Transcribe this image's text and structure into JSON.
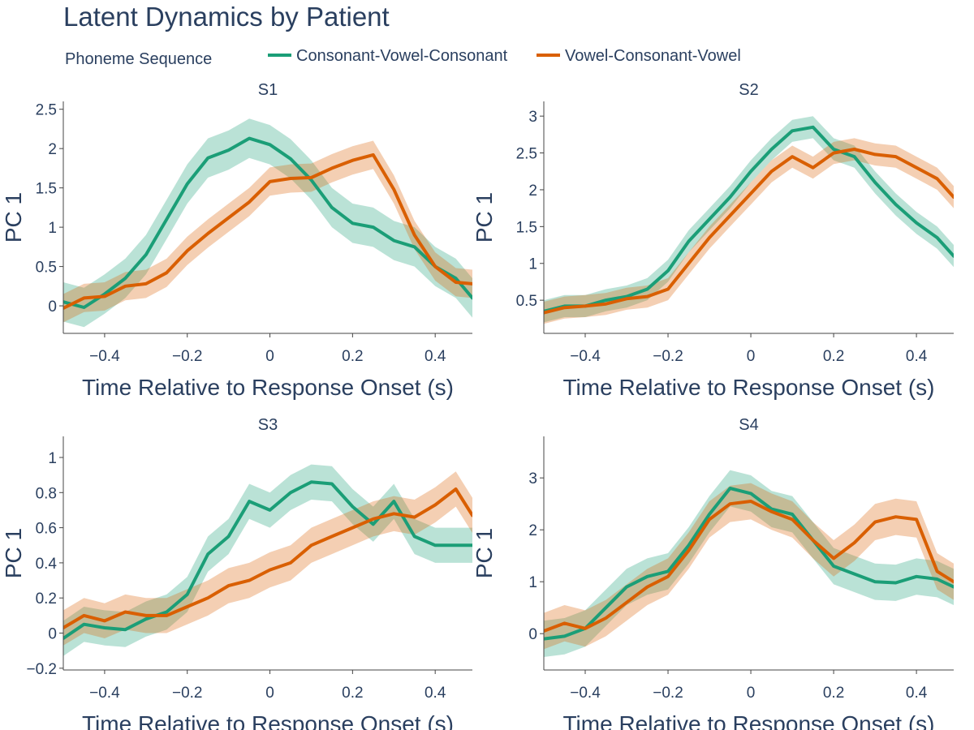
{
  "chart_title": "Latent Dynamics by Patient",
  "legend": {
    "title": "Phoneme Sequence",
    "items": [
      {
        "label": "Consonant-Vowel-Consonant",
        "color": "#1b9e77"
      },
      {
        "label": "Vowel-Consonant-Vowel",
        "color": "#d95f02"
      }
    ]
  },
  "colors": {
    "cvc": "#1b9e77",
    "vcv": "#d95f02",
    "text": "#2a3f5f",
    "axis": "#444444"
  },
  "chart_data": [
    {
      "type": "line",
      "title": "S1",
      "xlabel": "Time Relative to Response Onset (s)",
      "ylabel": "PC 1",
      "xlim": [
        -0.5,
        0.49
      ],
      "ylim": [
        -0.35,
        2.6
      ],
      "x_ticks": [
        -0.4,
        -0.2,
        0,
        0.2,
        0.4
      ],
      "x_tick_labels": [
        "−0.4",
        "−0.2",
        "0",
        "0.2",
        "0.4"
      ],
      "y_ticks": [
        0,
        0.5,
        1,
        1.5,
        2,
        2.5
      ],
      "y_tick_labels": [
        "0",
        "0.5",
        "1",
        "1.5",
        "2",
        "2.5"
      ],
      "x": [
        -0.5,
        -0.45,
        -0.4,
        -0.35,
        -0.3,
        -0.25,
        -0.2,
        -0.15,
        -0.1,
        -0.05,
        0,
        0.05,
        0.1,
        0.15,
        0.2,
        0.25,
        0.3,
        0.35,
        0.4,
        0.45,
        0.49
      ],
      "series": [
        {
          "name": "Consonant-Vowel-Consonant",
          "y": [
            0.05,
            -0.02,
            0.15,
            0.35,
            0.65,
            1.1,
            1.55,
            1.88,
            1.98,
            2.13,
            2.05,
            1.87,
            1.6,
            1.25,
            1.05,
            1.0,
            0.83,
            0.75,
            0.5,
            0.35,
            0.1
          ],
          "band": 0.25
        },
        {
          "name": "Vowel-Consonant-Vowel",
          "y": [
            -0.03,
            0.1,
            0.12,
            0.25,
            0.28,
            0.42,
            0.7,
            0.92,
            1.12,
            1.32,
            1.58,
            1.62,
            1.63,
            1.75,
            1.85,
            1.92,
            1.48,
            0.9,
            0.5,
            0.3,
            0.28
          ],
          "band": 0.18
        }
      ]
    },
    {
      "type": "line",
      "title": "S2",
      "xlabel": "Time Relative to Response Onset (s)",
      "ylabel": "PC 1",
      "xlim": [
        -0.5,
        0.49
      ],
      "ylim": [
        0.05,
        3.2
      ],
      "x_ticks": [
        -0.4,
        -0.2,
        0,
        0.2,
        0.4
      ],
      "x_tick_labels": [
        "−0.4",
        "−0.2",
        "0",
        "0.2",
        "0.4"
      ],
      "y_ticks": [
        0.5,
        1,
        1.5,
        2,
        2.5,
        3
      ],
      "y_tick_labels": [
        "0.5",
        "1",
        "1.5",
        "2",
        "2.5",
        "3"
      ],
      "x": [
        -0.5,
        -0.45,
        -0.4,
        -0.35,
        -0.3,
        -0.25,
        -0.2,
        -0.15,
        -0.1,
        -0.05,
        0,
        0.05,
        0.1,
        0.15,
        0.2,
        0.25,
        0.3,
        0.35,
        0.4,
        0.45,
        0.49
      ],
      "series": [
        {
          "name": "Consonant-Vowel-Consonant",
          "y": [
            0.35,
            0.42,
            0.42,
            0.5,
            0.55,
            0.65,
            0.9,
            1.3,
            1.6,
            1.9,
            2.25,
            2.55,
            2.8,
            2.85,
            2.55,
            2.45,
            2.1,
            1.8,
            1.55,
            1.35,
            1.1
          ],
          "band": 0.15
        },
        {
          "name": "Vowel-Consonant-Vowel",
          "y": [
            0.33,
            0.4,
            0.42,
            0.45,
            0.52,
            0.55,
            0.65,
            1.0,
            1.35,
            1.65,
            1.95,
            2.25,
            2.45,
            2.3,
            2.5,
            2.55,
            2.48,
            2.45,
            2.3,
            2.15,
            1.9
          ],
          "band": 0.15
        }
      ]
    },
    {
      "type": "line",
      "title": "S3",
      "xlabel": "Time Relative to Response Onset (s)",
      "ylabel": "PC 1",
      "xlim": [
        -0.5,
        0.49
      ],
      "ylim": [
        -0.21,
        1.12
      ],
      "x_ticks": [
        -0.4,
        -0.2,
        0,
        0.2,
        0.4
      ],
      "x_tick_labels": [
        "−0.4",
        "−0.2",
        "0",
        "0.2",
        "0.4"
      ],
      "y_ticks": [
        -0.2,
        0,
        0.2,
        0.4,
        0.6,
        0.8,
        1
      ],
      "y_tick_labels": [
        "−0.2",
        "0",
        "0.2",
        "0.4",
        "0.6",
        "0.8",
        "1"
      ],
      "x": [
        -0.5,
        -0.45,
        -0.4,
        -0.35,
        -0.3,
        -0.25,
        -0.2,
        -0.15,
        -0.1,
        -0.05,
        0,
        0.05,
        0.1,
        0.15,
        0.2,
        0.25,
        0.3,
        0.35,
        0.4,
        0.45,
        0.49
      ],
      "series": [
        {
          "name": "Consonant-Vowel-Consonant",
          "y": [
            -0.03,
            0.05,
            0.03,
            0.02,
            0.08,
            0.12,
            0.22,
            0.45,
            0.55,
            0.75,
            0.7,
            0.8,
            0.86,
            0.85,
            0.72,
            0.62,
            0.75,
            0.55,
            0.5,
            0.5,
            0.5
          ],
          "band": 0.1
        },
        {
          "name": "Vowel-Consonant-Vowel",
          "y": [
            0.03,
            0.1,
            0.07,
            0.12,
            0.1,
            0.1,
            0.15,
            0.2,
            0.27,
            0.3,
            0.36,
            0.4,
            0.5,
            0.55,
            0.6,
            0.65,
            0.68,
            0.66,
            0.73,
            0.82,
            0.67
          ],
          "band": 0.1
        }
      ]
    },
    {
      "type": "line",
      "title": "S4",
      "xlabel": "Time Relative to Response Onset (s)",
      "ylabel": "PC 1",
      "xlim": [
        -0.5,
        0.49
      ],
      "ylim": [
        -0.7,
        3.8
      ],
      "x_ticks": [
        -0.4,
        -0.2,
        0,
        0.2,
        0.4
      ],
      "x_tick_labels": [
        "−0.4",
        "−0.2",
        "0",
        "0.2",
        "0.4"
      ],
      "y_ticks": [
        0,
        1,
        2,
        3
      ],
      "y_tick_labels": [
        "0",
        "1",
        "2",
        "3"
      ],
      "x": [
        -0.5,
        -0.45,
        -0.4,
        -0.35,
        -0.3,
        -0.25,
        -0.2,
        -0.15,
        -0.1,
        -0.05,
        0,
        0.05,
        0.1,
        0.15,
        0.2,
        0.25,
        0.3,
        0.35,
        0.4,
        0.45,
        0.49
      ],
      "series": [
        {
          "name": "Consonant-Vowel-Consonant",
          "y": [
            -0.1,
            -0.05,
            0.1,
            0.5,
            0.9,
            1.1,
            1.2,
            1.7,
            2.3,
            2.8,
            2.7,
            2.4,
            2.3,
            1.8,
            1.3,
            1.15,
            1.0,
            0.98,
            1.1,
            1.05,
            0.9
          ],
          "band": 0.35
        },
        {
          "name": "Vowel-Consonant-Vowel",
          "y": [
            0.05,
            0.2,
            0.1,
            0.3,
            0.6,
            0.9,
            1.1,
            1.6,
            2.2,
            2.5,
            2.55,
            2.35,
            2.2,
            1.8,
            1.45,
            1.75,
            2.15,
            2.25,
            2.2,
            1.2,
            1.0
          ],
          "band": 0.35
        }
      ]
    }
  ]
}
